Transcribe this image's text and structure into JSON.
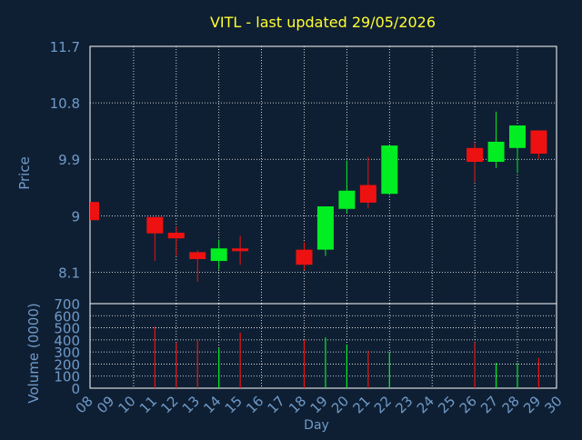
{
  "colors": {
    "background": "#0f1f33",
    "title": "#ffff33",
    "axis_text": "#6f9ac8",
    "grid": "#ffffff",
    "up": "#00ee22",
    "down": "#ee1111",
    "wick": "#ffffff"
  },
  "chart_data": [
    {
      "type": "candlestick",
      "title": "VITL - last updated 29/05/2026",
      "ylabel": "Price",
      "ylim": [
        7.6,
        11.7
      ],
      "yticks": [
        "11.7",
        "10.8",
        "9.9",
        "9",
        "8.1"
      ],
      "grid": true,
      "x_categories": [
        "08",
        "09",
        "10",
        "11",
        "12",
        "13",
        "14",
        "15",
        "16",
        "17",
        "18",
        "19",
        "20",
        "21",
        "22",
        "23",
        "24",
        "25",
        "26",
        "27",
        "28",
        "29",
        "30"
      ],
      "candles": [
        {
          "day": "08",
          "open": 9.22,
          "close": 8.93,
          "high": 9.22,
          "low": 8.93
        },
        {
          "day": "11",
          "open": 8.98,
          "close": 8.72,
          "high": 8.98,
          "low": 8.28
        },
        {
          "day": "12",
          "open": 8.73,
          "close": 8.64,
          "high": 8.83,
          "low": 8.36
        },
        {
          "day": "13",
          "open": 8.42,
          "close": 8.31,
          "high": 8.45,
          "low": 7.95
        },
        {
          "day": "14",
          "open": 8.28,
          "close": 8.48,
          "high": 8.62,
          "low": 8.14
        },
        {
          "day": "15",
          "open": 8.48,
          "close": 8.45,
          "high": 8.68,
          "low": 8.22
        },
        {
          "day": "18",
          "open": 8.46,
          "close": 8.22,
          "high": 8.58,
          "low": 8.13
        },
        {
          "day": "19",
          "open": 8.46,
          "close": 9.15,
          "high": 9.15,
          "low": 8.36
        },
        {
          "day": "20",
          "open": 9.11,
          "close": 9.4,
          "high": 9.88,
          "low": 9.04
        },
        {
          "day": "21",
          "open": 9.49,
          "close": 9.21,
          "high": 9.94,
          "low": 9.12
        },
        {
          "day": "22",
          "open": 9.35,
          "close": 10.12,
          "high": 10.12,
          "low": 9.33
        },
        {
          "day": "26",
          "open": 10.08,
          "close": 9.86,
          "high": 10.16,
          "low": 9.54
        },
        {
          "day": "27",
          "open": 9.86,
          "close": 10.18,
          "high": 10.66,
          "low": 9.76
        },
        {
          "day": "28",
          "open": 10.08,
          "close": 10.44,
          "high": 10.44,
          "low": 9.68
        },
        {
          "day": "29",
          "open": 10.36,
          "close": 9.99,
          "high": 10.36,
          "low": 9.91
        }
      ]
    },
    {
      "type": "bar",
      "xlabel": "Day",
      "ylabel": "Volume (0000)",
      "ylim": [
        0,
        700
      ],
      "yticks": [
        "700",
        "600",
        "500",
        "400",
        "300",
        "200",
        "100",
        "0"
      ],
      "grid": true,
      "categories": [
        "08",
        "09",
        "10",
        "11",
        "12",
        "13",
        "14",
        "15",
        "16",
        "17",
        "18",
        "19",
        "20",
        "21",
        "22",
        "23",
        "24",
        "25",
        "26",
        "27",
        "28",
        "29",
        "30"
      ],
      "bars": [
        {
          "day": "11",
          "value": 510,
          "direction": "down"
        },
        {
          "day": "12",
          "value": 380,
          "direction": "down"
        },
        {
          "day": "13",
          "value": 400,
          "direction": "down"
        },
        {
          "day": "14",
          "value": 330,
          "direction": "up"
        },
        {
          "day": "15",
          "value": 460,
          "direction": "down"
        },
        {
          "day": "18",
          "value": 400,
          "direction": "down"
        },
        {
          "day": "19",
          "value": 420,
          "direction": "up"
        },
        {
          "day": "20",
          "value": 360,
          "direction": "up"
        },
        {
          "day": "21",
          "value": 310,
          "direction": "down"
        },
        {
          "day": "22",
          "value": 300,
          "direction": "up"
        },
        {
          "day": "26",
          "value": 380,
          "direction": "down"
        },
        {
          "day": "27",
          "value": 210,
          "direction": "up"
        },
        {
          "day": "28",
          "value": 210,
          "direction": "up"
        },
        {
          "day": "29",
          "value": 250,
          "direction": "down"
        }
      ]
    }
  ]
}
